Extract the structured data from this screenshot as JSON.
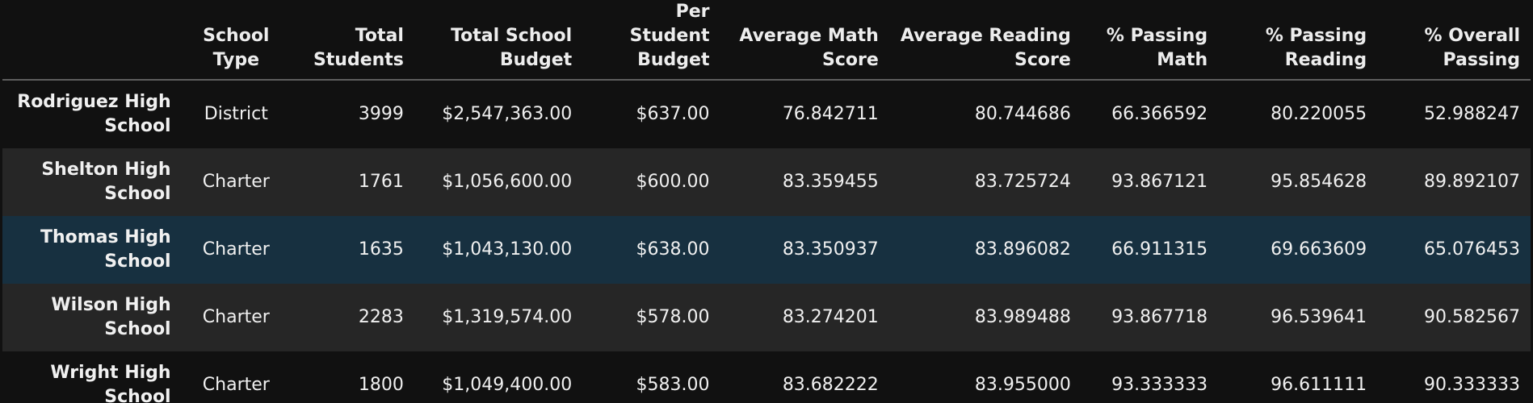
{
  "table": {
    "index_header": "",
    "columns": [
      "School Type",
      "Total Students",
      "Total School Budget",
      "Per Student Budget",
      "Average Math Score",
      "Average Reading Score",
      "% Passing Math",
      "% Passing Reading",
      "% Overall Passing"
    ],
    "rows": [
      {
        "index": "Rodriguez High School",
        "cells": [
          "District",
          "3999",
          "$2,547,363.00",
          "$637.00",
          "76.842711",
          "80.744686",
          "66.366592",
          "80.220055",
          "52.988247"
        ]
      },
      {
        "index": "Shelton High School",
        "cells": [
          "Charter",
          "1761",
          "$1,056,600.00",
          "$600.00",
          "83.359455",
          "83.725724",
          "93.867121",
          "95.854628",
          "89.892107"
        ]
      },
      {
        "index": "Thomas High School",
        "cells": [
          "Charter",
          "1635",
          "$1,043,130.00",
          "$638.00",
          "83.350937",
          "83.896082",
          "66.911315",
          "69.663609",
          "65.076453"
        ]
      },
      {
        "index": "Wilson High School",
        "cells": [
          "Charter",
          "2283",
          "$1,319,574.00",
          "$578.00",
          "83.274201",
          "83.989488",
          "93.867718",
          "96.539641",
          "90.582567"
        ]
      },
      {
        "index": "Wright High School",
        "cells": [
          "Charter",
          "1800",
          "$1,049,400.00",
          "$583.00",
          "83.682222",
          "83.955000",
          "93.333333",
          "96.611111",
          "90.333333"
        ]
      }
    ]
  },
  "colors": {
    "background": "#111111",
    "row_stripe": "#262626",
    "row_hover": "#173040",
    "header_rule": "#5e5e5e",
    "text": "#f0f0f0"
  }
}
